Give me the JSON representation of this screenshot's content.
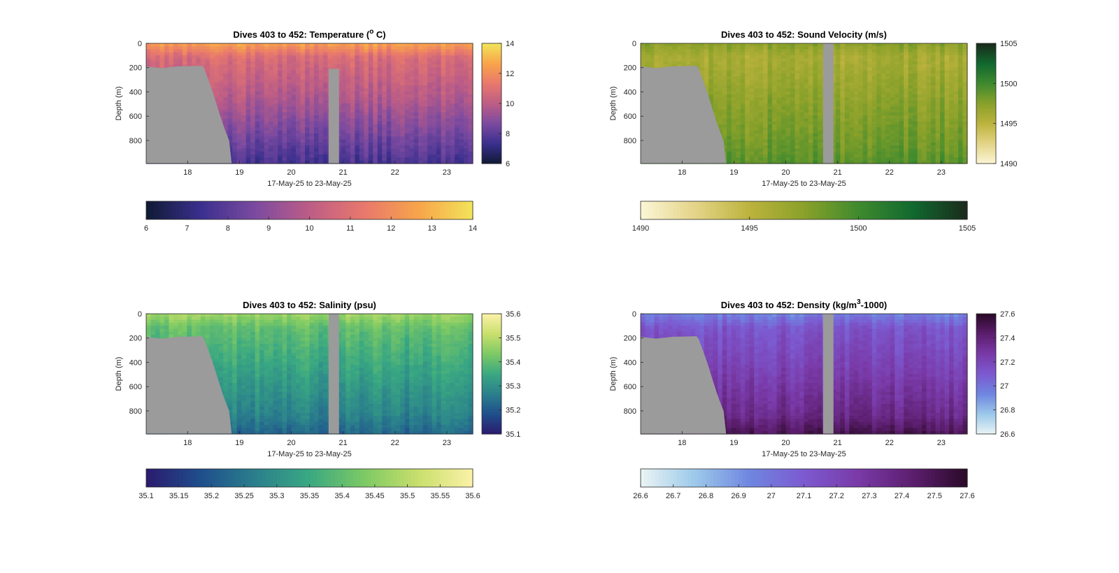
{
  "figure": {
    "x_axis_label": "17-May-25 to 23-May-25",
    "x_ticks": [
      "18",
      "19",
      "20",
      "21",
      "22",
      "23"
    ],
    "x_tick_values": [
      18,
      19,
      20,
      21,
      22,
      23
    ],
    "y_axis_label": "Depth (m)",
    "y_ticks": [
      "0",
      "200",
      "400",
      "600",
      "800"
    ],
    "y_tick_values": [
      0,
      200,
      400,
      600,
      800
    ],
    "colors": {
      "background": "#ffffff",
      "no_data": "#9b9b9b",
      "axis": "#262626"
    }
  },
  "chart_data": [
    {
      "type": "heatmap",
      "title_prefix": "Dives 403 to 452: Temperature (",
      "title_sup": "o",
      "title_suffix": " C)",
      "xlim": [
        17.2,
        23.5
      ],
      "ylim": [
        0,
        990
      ],
      "y_reversed": true,
      "colormap": [
        "#0f1a33",
        "#3a2f8e",
        "#7b4aa0",
        "#bd5d86",
        "#e8786d",
        "#f8a44a",
        "#f2e45a"
      ],
      "side_colorbar": {
        "min": 6,
        "max": 14,
        "ticks": [
          "14",
          "12",
          "10",
          "8",
          "6"
        ],
        "tick_values": [
          14,
          12,
          10,
          8,
          6
        ]
      },
      "bottom_colorbar": {
        "min": 6,
        "max": 14,
        "ticks": [
          "6",
          "7",
          "8",
          "9",
          "10",
          "11",
          "12",
          "13",
          "14"
        ],
        "tick_values": [
          6,
          7,
          8,
          9,
          10,
          11,
          12,
          13,
          14
        ]
      },
      "profile": {
        "surface": 12.6,
        "upper": 10.8,
        "mid": 9.8,
        "deep": 8.2,
        "bottom": 7.6
      },
      "bottom_depth_day": [
        [
          17.2,
          190
        ],
        [
          17.5,
          205
        ],
        [
          17.8,
          190
        ],
        [
          18.3,
          185
        ],
        [
          18.4,
          300
        ],
        [
          18.5,
          420
        ],
        [
          18.6,
          560
        ],
        [
          18.7,
          690
        ],
        [
          18.8,
          800
        ],
        [
          18.85,
          990
        ]
      ],
      "gap": {
        "start": 20.72,
        "end": 20.92,
        "top_depth": 210
      }
    },
    {
      "type": "heatmap",
      "title_prefix": "Dives 403 to 452: Sound Velocity (m/s)",
      "title_sup": "",
      "title_suffix": "",
      "xlim": [
        17.2,
        23.5
      ],
      "ylim": [
        0,
        990
      ],
      "y_reversed": true,
      "colormap": [
        "#fbf6d6",
        "#e4d488",
        "#bcb33d",
        "#8aa12a",
        "#3f8a2e",
        "#11692f",
        "#1a2a1c"
      ],
      "side_colorbar": {
        "min": 1490,
        "max": 1505,
        "ticks": [
          "1505",
          "1500",
          "1495",
          "1490"
        ],
        "tick_values": [
          1505,
          1500,
          1495,
          1490
        ]
      },
      "bottom_colorbar": {
        "min": 1490,
        "max": 1505,
        "ticks": [
          "1490",
          "1495",
          "1500",
          "1505"
        ],
        "tick_values": [
          1490,
          1495,
          1500,
          1505
        ]
      },
      "profile": {
        "surface": 1497.5,
        "upper": 1496.0,
        "mid": 1497.2,
        "deep": 1498.5,
        "bottom": 1499.2
      },
      "bottom_depth_day": [
        [
          17.2,
          190
        ],
        [
          17.5,
          205
        ],
        [
          17.8,
          190
        ],
        [
          18.3,
          185
        ],
        [
          18.4,
          300
        ],
        [
          18.5,
          420
        ],
        [
          18.6,
          560
        ],
        [
          18.7,
          690
        ],
        [
          18.8,
          800
        ],
        [
          18.85,
          990
        ]
      ],
      "gap": {
        "start": 20.72,
        "end": 20.92,
        "top_depth": 0
      }
    },
    {
      "type": "heatmap",
      "title_prefix": "Dives 403 to 452: Salinity (psu)",
      "title_sup": "",
      "title_suffix": "",
      "xlim": [
        17.2,
        23.5
      ],
      "ylim": [
        0,
        990
      ],
      "y_reversed": true,
      "colormap": [
        "#2b1a6e",
        "#1f4e8c",
        "#2a7f8c",
        "#3aa882",
        "#7cc964",
        "#c9df6c",
        "#fbf2a8"
      ],
      "side_colorbar": {
        "min": 35.1,
        "max": 35.6,
        "ticks": [
          "35.6",
          "35.5",
          "35.4",
          "35.3",
          "35.2",
          "35.1"
        ],
        "tick_values": [
          35.6,
          35.5,
          35.4,
          35.3,
          35.2,
          35.1
        ]
      },
      "bottom_colorbar": {
        "min": 35.1,
        "max": 35.6,
        "ticks": [
          "35.1",
          "35.15",
          "35.2",
          "35.25",
          "35.3",
          "35.35",
          "35.4",
          "35.45",
          "35.5",
          "35.55",
          "35.6"
        ],
        "tick_values": [
          35.1,
          35.15,
          35.2,
          35.25,
          35.3,
          35.35,
          35.4,
          35.45,
          35.5,
          35.55,
          35.6
        ]
      },
      "profile": {
        "surface": 35.47,
        "upper": 35.4,
        "mid": 35.34,
        "deep": 35.27,
        "bottom": 35.22
      },
      "bottom_depth_day": [
        [
          17.2,
          190
        ],
        [
          17.5,
          205
        ],
        [
          17.8,
          190
        ],
        [
          18.3,
          185
        ],
        [
          18.4,
          300
        ],
        [
          18.5,
          420
        ],
        [
          18.6,
          560
        ],
        [
          18.7,
          690
        ],
        [
          18.8,
          800
        ],
        [
          18.85,
          990
        ]
      ],
      "gap": {
        "start": 20.72,
        "end": 20.92,
        "top_depth": 0
      }
    },
    {
      "type": "heatmap",
      "title_prefix": "Dives 403 to 452: Density (kg/m",
      "title_sup": "3",
      "title_suffix": "-1000)",
      "xlim": [
        17.2,
        23.5
      ],
      "ylim": [
        0,
        990
      ],
      "y_reversed": true,
      "colormap": [
        "#eaf4f4",
        "#9cc9ea",
        "#6f86e0",
        "#7c5ad0",
        "#7a3aa8",
        "#5c1e6e",
        "#2a0a28"
      ],
      "side_colorbar": {
        "min": 26.6,
        "max": 27.6,
        "ticks": [
          "27.6",
          "27.4",
          "27.2",
          "27",
          "26.8",
          "26.6"
        ],
        "tick_values": [
          27.6,
          27.4,
          27.2,
          27,
          26.8,
          26.6
        ]
      },
      "bottom_colorbar": {
        "min": 26.6,
        "max": 27.6,
        "ticks": [
          "26.6",
          "26.7",
          "26.8",
          "26.9",
          "27",
          "27.1",
          "27.2",
          "27.3",
          "27.4",
          "27.5",
          "27.6"
        ],
        "tick_values": [
          26.6,
          26.7,
          26.8,
          26.9,
          27,
          27.1,
          27.2,
          27.3,
          27.4,
          27.5,
          27.6
        ]
      },
      "profile": {
        "surface": 26.95,
        "upper": 27.12,
        "mid": 27.22,
        "deep": 27.36,
        "bottom": 27.5
      },
      "bottom_depth_day": [
        [
          17.2,
          190
        ],
        [
          17.5,
          205
        ],
        [
          17.8,
          190
        ],
        [
          18.3,
          185
        ],
        [
          18.4,
          300
        ],
        [
          18.5,
          420
        ],
        [
          18.6,
          560
        ],
        [
          18.7,
          690
        ],
        [
          18.8,
          800
        ],
        [
          18.85,
          990
        ]
      ],
      "gap": {
        "start": 20.72,
        "end": 20.92,
        "top_depth": 0
      }
    }
  ]
}
